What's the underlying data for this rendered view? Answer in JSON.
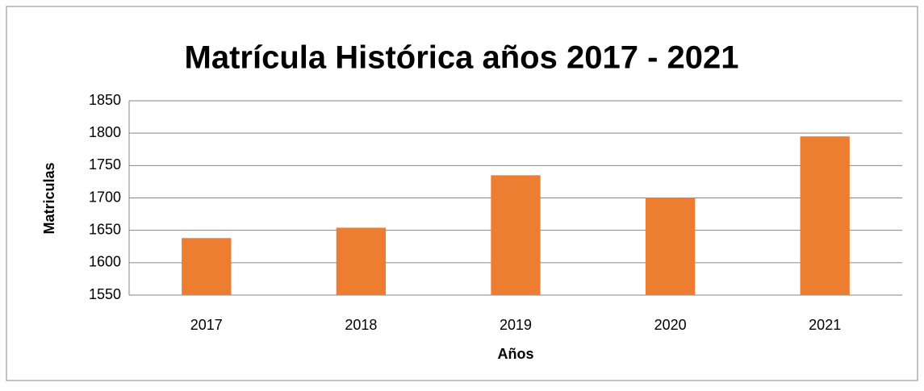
{
  "chart_data": {
    "type": "bar",
    "title": "Matrícula Histórica años 2017 - 2021",
    "x_label": "Años",
    "y_label": "Matriculas",
    "categories": [
      "2017",
      "2018",
      "2019",
      "2020",
      "2021"
    ],
    "values": [
      1638,
      1654,
      1735,
      1700,
      1795
    ],
    "color": "#ed7d31",
    "ylim": [
      1550,
      1850
    ],
    "yticks": [
      1550,
      1600,
      1650,
      1700,
      1750,
      1800,
      1850
    ],
    "grid": true
  }
}
